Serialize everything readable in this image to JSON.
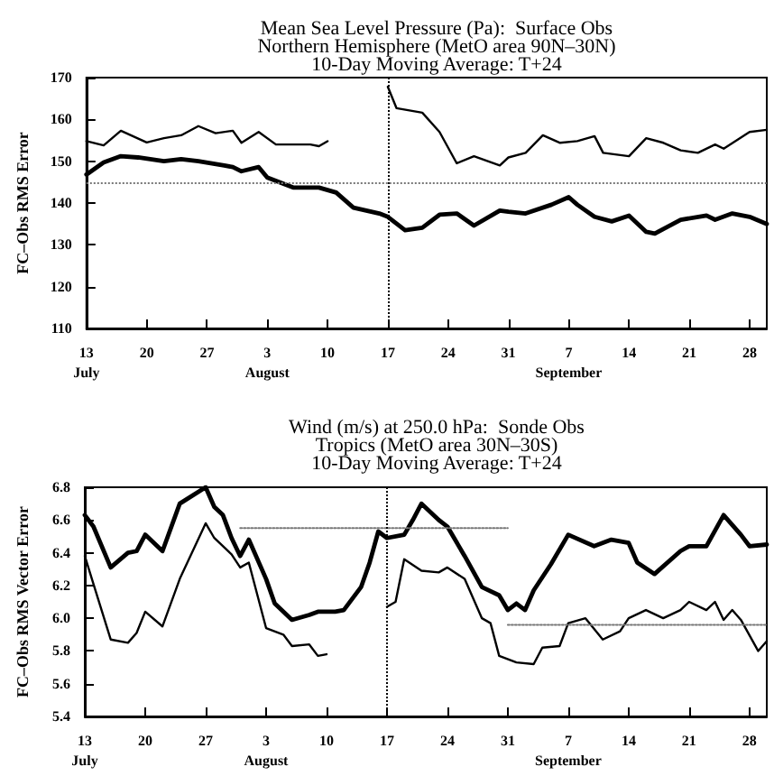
{
  "chart_data": [
    {
      "type": "line",
      "title": "Mean Sea Level Pressure (Pa):  Surface Obs\nNorthern Hemisphere (MetO area 90N–30N)\n10-Day Moving Average: T+24",
      "ylabel": "FC–Obs RMS Error",
      "marker": "none",
      "xlim": [
        "--07-13",
        "--09-30"
      ],
      "xticks": [
        {
          "value": "--07-13",
          "label": "13\nJuly"
        },
        {
          "value": "--07-20",
          "label": "20"
        },
        {
          "value": "--07-27",
          "label": "27"
        },
        {
          "value": "--08-03",
          "label": "3\nAugust"
        },
        {
          "value": "--08-10",
          "label": "10"
        },
        {
          "value": "--08-17",
          "label": "17"
        },
        {
          "value": "--08-24",
          "label": "24"
        },
        {
          "value": "--08-31",
          "label": "31"
        },
        {
          "value": "--09-07",
          "label": "7\nSeptember"
        },
        {
          "value": "--09-14",
          "label": "14"
        },
        {
          "value": "--09-21",
          "label": "21"
        },
        {
          "value": "--09-28",
          "label": "28"
        }
      ],
      "ylim": [
        110,
        170
      ],
      "yticks": [
        110,
        120,
        130,
        140,
        150,
        160,
        170
      ],
      "ref_lines": [
        {
          "axis": "x",
          "value": "--08-17",
          "color": "#000000",
          "line_style": "dotted"
        },
        {
          "axis": "y",
          "value": 144.7,
          "color": "#777777",
          "line_style": "dotted"
        }
      ],
      "series": [
        {
          "color": "#000000",
          "x": [
            "--07-13",
            "--07-15",
            "--07-17",
            "--07-20",
            "--07-22",
            "--07-24",
            "--07-26",
            "--07-28",
            "--07-30",
            "--07-31",
            "--08-02",
            "--08-04",
            "--08-08",
            "--08-09",
            "--08-10",
            "--08-13",
            "--08-17",
            "--08-18",
            "--08-21",
            "--08-23",
            "--08-25",
            "--08-27",
            "--08-30",
            "--08-31",
            "--09-02",
            "--09-04",
            "--09-06",
            "--09-08",
            "--09-10",
            "--09-11",
            "--09-14",
            "--09-16",
            "--09-18",
            "--09-20",
            "--09-22",
            "--09-24",
            "--09-25",
            "--09-28",
            "--09-30"
          ],
          "values": [
            154.8,
            153.8,
            157.3,
            154.5,
            155.5,
            156.2,
            158.4,
            156.7,
            157.3,
            154.4,
            157,
            154,
            154,
            153.6,
            154.8,
            null,
            167.8,
            162.7,
            161.6,
            157,
            149.5,
            151.2,
            149,
            150.9,
            152,
            156.2,
            154.4,
            154.8,
            156,
            152,
            151.2,
            155.5,
            154.4,
            152.6,
            152,
            154,
            153,
            157,
            157.5
          ]
        },
        {
          "color": "#000000",
          "x": [
            "--07-13",
            "--07-15",
            "--07-17",
            "--07-19",
            "--07-22",
            "--07-24",
            "--07-26",
            "--07-29",
            "--07-30",
            "--07-31",
            "--08-02",
            "--08-03",
            "--08-06",
            "--08-09",
            "--08-11",
            "--08-13",
            "--08-16",
            "--08-17",
            "--08-19",
            "--08-21",
            "--08-23",
            "--08-25",
            "--08-27",
            "--08-30",
            "--08-31",
            "--09-02",
            "--09-05",
            "--09-07",
            "--09-08",
            "--09-10",
            "--09-12",
            "--09-14",
            "--09-16",
            "--09-17",
            "--09-20",
            "--09-23",
            "--09-24",
            "--09-26",
            "--09-28",
            "--09-30"
          ],
          "values": [
            146.8,
            149.7,
            151.2,
            150.9,
            150,
            150.5,
            150,
            149,
            148.6,
            147.6,
            148.6,
            146.1,
            143.7,
            143.7,
            142.5,
            138.9,
            137.5,
            136.7,
            133.5,
            134.1,
            137.2,
            137.5,
            134.6,
            138.2,
            137.9,
            137.5,
            139.6,
            141.4,
            139.6,
            136.7,
            135.6,
            137,
            133.1,
            132.7,
            136,
            137,
            136,
            137.5,
            136.7,
            135
          ]
        }
      ]
    },
    {
      "type": "line",
      "title": "Wind (m/s) at 250.0 hPa:  Sonde Obs\nTropics (MetO area 30N–30S)\n10-Day Moving Average: T+24",
      "ylabel": "FC–Obs RMS Vector Error",
      "marker": "none",
      "xlim": [
        "--07-13",
        "--09-30"
      ],
      "xticks": [
        {
          "value": "--07-13",
          "label": "13\nJuly"
        },
        {
          "value": "--07-20",
          "label": "20"
        },
        {
          "value": "--07-27",
          "label": "27"
        },
        {
          "value": "--08-03",
          "label": "3\nAugust"
        },
        {
          "value": "--08-10",
          "label": "10"
        },
        {
          "value": "--08-17",
          "label": "17"
        },
        {
          "value": "--08-24",
          "label": "24"
        },
        {
          "value": "--08-31",
          "label": "31"
        },
        {
          "value": "--09-07",
          "label": "7\nSeptember"
        },
        {
          "value": "--09-14",
          "label": "14"
        },
        {
          "value": "--09-21",
          "label": "21"
        },
        {
          "value": "--09-28",
          "label": "28"
        }
      ],
      "ylim": [
        5.4,
        6.8
      ],
      "yticks": [
        {
          "value": 5.4,
          "label": "5.4"
        },
        {
          "value": 5.6,
          "label": "5.6"
        },
        {
          "value": 5.8,
          "label": "5.8"
        },
        {
          "value": 6,
          "label": "6.0"
        },
        {
          "value": 6.2,
          "label": "6.2"
        },
        {
          "value": 6.4,
          "label": "6.4"
        },
        {
          "value": 6.6,
          "label": "6.6"
        },
        {
          "value": 6.8,
          "label": "6.8"
        }
      ],
      "ref_lines": [
        {
          "axis": "x",
          "value": "--08-17",
          "color": "#000000",
          "line_style": "dotted"
        }
      ],
      "series": [
        {
          "color": "#000000",
          "x": [
            "--07-13",
            "--07-14",
            "--07-16",
            "--07-18",
            "--07-19",
            "--07-20",
            "--07-22",
            "--07-24",
            "--07-27",
            "--07-28",
            "--07-30",
            "--07-31",
            "--08-01",
            "--08-03",
            "--08-05",
            "--08-06",
            "--08-08",
            "--08-09",
            "--08-10",
            "--08-13",
            "--08-17",
            "--08-18",
            "--08-19",
            "--08-21",
            "--08-23",
            "--08-24",
            "--08-26",
            "--08-28",
            "--08-29",
            "--08-30",
            "--09-01",
            "--09-03",
            "--09-04",
            "--09-06",
            "--09-07",
            "--09-09",
            "--09-11",
            "--09-13",
            "--09-14",
            "--09-16",
            "--09-18",
            "--09-20",
            "--09-21",
            "--09-23",
            "--09-24",
            "--09-25",
            "--09-26",
            "--09-27",
            "--09-29",
            "--09-30"
          ],
          "values": [
            6.38,
            6.21,
            5.87,
            5.85,
            5.91,
            6.04,
            5.95,
            6.24,
            6.58,
            6.49,
            6.39,
            6.31,
            6.34,
            5.94,
            5.9,
            5.83,
            5.84,
            5.77,
            5.78,
            null,
            6.07,
            6.1,
            6.36,
            6.29,
            6.28,
            6.31,
            6.24,
            6,
            5.97,
            5.77,
            5.73,
            5.72,
            5.82,
            5.83,
            5.97,
            6,
            5.87,
            5.92,
            6,
            6.05,
            6,
            6.05,
            6.1,
            6.05,
            6.1,
            5.99,
            6.05,
            5.99,
            5.8,
            5.86
          ]
        },
        {
          "color": "#000000",
          "x": [
            "--07-13",
            "--07-14",
            "--07-16",
            "--07-18",
            "--07-19",
            "--07-20",
            "--07-22",
            "--07-24",
            "--07-27",
            "--07-28",
            "--07-29",
            "--07-30",
            "--07-31",
            "--08-01",
            "--08-03",
            "--08-04",
            "--08-06",
            "--08-08",
            "--08-09",
            "--08-11",
            "--08-12",
            "--08-14",
            "--08-15",
            "--08-16",
            "--08-17",
            "--08-19",
            "--08-20",
            "--08-21",
            "--08-23",
            "--08-24",
            "--08-26",
            "--08-28",
            "--08-30",
            "--08-31",
            "--09-01",
            "--09-02",
            "--09-03",
            "--09-05",
            "--09-07",
            "--09-10",
            "--09-12",
            "--09-14",
            "--09-15",
            "--09-17",
            "--09-20",
            "--09-21",
            "--09-23",
            "--09-25",
            "--09-27",
            "--09-28",
            "--09-30"
          ],
          "values": [
            6.63,
            6.56,
            6.31,
            6.4,
            6.41,
            6.51,
            6.41,
            6.7,
            6.8,
            6.68,
            6.63,
            6.49,
            6.38,
            6.48,
            6.24,
            6.09,
            5.99,
            6.02,
            6.04,
            6.04,
            6.05,
            6.19,
            6.34,
            6.53,
            6.49,
            6.51,
            6.6,
            6.7,
            6.6,
            6.56,
            6.38,
            6.19,
            6.14,
            6.05,
            6.09,
            6.05,
            6.17,
            6.33,
            6.51,
            6.44,
            6.48,
            6.46,
            6.34,
            6.27,
            6.41,
            6.44,
            6.44,
            6.63,
            6.51,
            6.44,
            6.45
          ]
        },
        {
          "type": "line",
          "color": "#777777",
          "line_style": "dotted",
          "x": [
            "--07-31",
            "--08-31"
          ],
          "values": [
            6.55,
            6.55
          ]
        },
        {
          "type": "line",
          "color": "#777777",
          "line_style": "dotted",
          "x": [
            "--08-31",
            "--09-30"
          ],
          "values": [
            5.96,
            5.96
          ]
        }
      ]
    }
  ]
}
